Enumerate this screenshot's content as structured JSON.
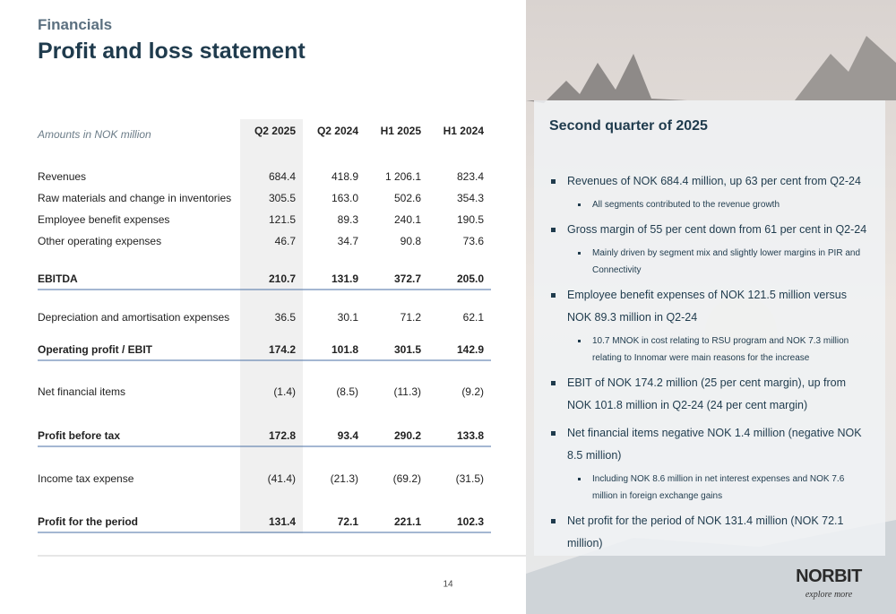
{
  "header": {
    "section": "Financials",
    "title": "Profit and loss statement"
  },
  "table": {
    "unit_label": "Amounts in NOK million",
    "columns": [
      "Q2 2025",
      "Q2 2024",
      "H1 2025",
      "H1 2024"
    ],
    "rows": [
      {
        "label": "Revenues",
        "values": [
          "684.4",
          "418.9",
          "1 206.1",
          "823.4"
        ]
      },
      {
        "label": "Raw materials and change in inventories",
        "values": [
          "305.5",
          "163.0",
          "502.6",
          "354.3"
        ]
      },
      {
        "label": "Employee benefit expenses",
        "values": [
          "121.5",
          "89.3",
          "240.1",
          "190.5"
        ]
      },
      {
        "label": "Other operating expenses",
        "values": [
          "46.7",
          "34.7",
          "90.8",
          "73.6"
        ]
      },
      {
        "label": "EBITDA",
        "values": [
          "210.7",
          "131.9",
          "372.7",
          "205.0"
        ],
        "emphasis": true
      },
      {
        "label": "Depreciation and amortisation expenses",
        "values": [
          "36.5",
          "30.1",
          "71.2",
          "62.1"
        ]
      },
      {
        "label": "Operating profit / EBIT",
        "values": [
          "174.2",
          "101.8",
          "301.5",
          "142.9"
        ],
        "emphasis": true
      },
      {
        "label": "Net financial items",
        "values": [
          "(1.4)",
          "(8.5)",
          "(11.3)",
          "(9.2)"
        ]
      },
      {
        "label": "Profit before tax",
        "values": [
          "172.8",
          "93.4",
          "290.2",
          "133.8"
        ],
        "emphasis": true
      },
      {
        "label": "Income tax expense",
        "values": [
          "(41.4)",
          "(21.3)",
          "(69.2)",
          "(31.5)"
        ]
      },
      {
        "label": "Profit for the period",
        "values": [
          "131.4",
          "72.1",
          "221.1",
          "102.3"
        ],
        "emphasis": true
      }
    ]
  },
  "panel": {
    "title": "Second quarter of 2025",
    "bullets": [
      {
        "text": "Revenues of NOK 684.4 million, up 63 per cent from Q2-24",
        "sub": [
          "All segments contributed to the revenue growth"
        ]
      },
      {
        "text": "Gross margin of 55 per cent down from 61 per cent in Q2-24",
        "sub": [
          "Mainly driven by segment mix and slightly lower margins in PIR and Connectivity"
        ]
      },
      {
        "text": "Employee benefit expenses of NOK 121.5 million versus NOK 89.3 million in Q2-24",
        "sub": [
          "10.7 MNOK in cost relating to RSU program and NOK 7.3 million relating to Innomar were main reasons for the increase"
        ]
      },
      {
        "text": "EBIT of NOK 174.2 million (25 per cent margin), up from NOK 101.8 million in Q2-24 (24 per cent margin)",
        "sub": []
      },
      {
        "text": "Net financial items negative NOK 1.4 million (negative NOK 8.5 million)",
        "sub": [
          "Including NOK 8.6 million in net interest expenses and NOK 7.6 million in foreign exchange gains"
        ]
      },
      {
        "text": "Net profit for the period of NOK 131.4 million (NOK 72.1 million)",
        "sub": []
      }
    ]
  },
  "footer": {
    "page_number": "14",
    "logo": "NORBIT",
    "tagline": "explore more"
  }
}
